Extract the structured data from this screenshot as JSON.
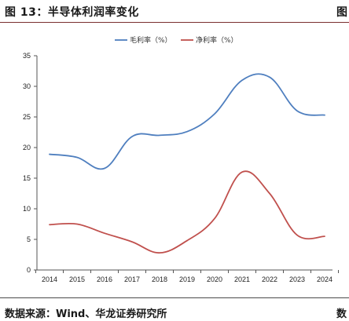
{
  "header": {
    "title": "图 13：半导体利润率变化",
    "title_cut": "图"
  },
  "footer": {
    "source": "数据来源：Wind、华龙证券研究所",
    "source_cut": "数"
  },
  "chart_data": {
    "type": "line",
    "title": "",
    "xlabel": "",
    "ylabel": "",
    "x": [
      "2014",
      "2015",
      "2016",
      "2017",
      "2018",
      "2019",
      "2020",
      "2021",
      "2022",
      "2023",
      "2024"
    ],
    "ylim": [
      0,
      35
    ],
    "yticks": [
      0,
      5,
      10,
      15,
      20,
      25,
      30,
      35
    ],
    "grid": false,
    "legend_position": "top-center",
    "series": [
      {
        "name": "毛利率（%）",
        "color": "#4f7fbf",
        "values": [
          18.9,
          18.4,
          16.6,
          21.8,
          22.0,
          22.6,
          25.5,
          31.0,
          31.5,
          26.0,
          25.3
        ]
      },
      {
        "name": "净利率（%）",
        "color": "#c0504d",
        "values": [
          7.4,
          7.5,
          6.0,
          4.6,
          2.8,
          4.8,
          8.4,
          16.0,
          12.5,
          5.7,
          5.5
        ]
      }
    ]
  }
}
